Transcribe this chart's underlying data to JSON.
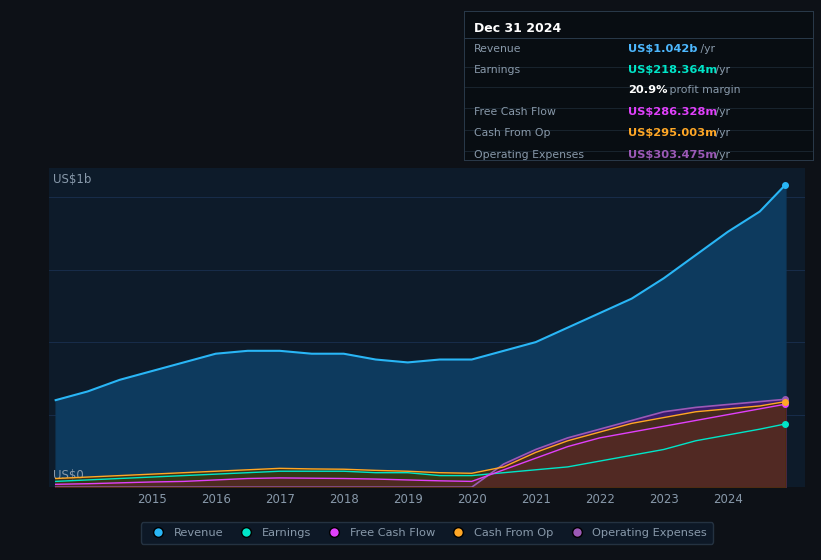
{
  "background_color": "#0d1117",
  "plot_bg_color": "#0d1b2a",
  "tooltip_bg": "#080d12",
  "tooltip_border": "#2a3a4a",
  "title_box": {
    "date": "Dec 31 2024",
    "rows": [
      {
        "label": "Revenue",
        "value": "US$1.042b",
        "suffix": " /yr",
        "value_color": "#4db8ff"
      },
      {
        "label": "Earnings",
        "value": "US$218.364m",
        "suffix": " /yr",
        "value_color": "#00e5c8"
      },
      {
        "label": "",
        "value": "20.9%",
        "suffix": " profit margin",
        "value_color": "#ffffff"
      },
      {
        "label": "Free Cash Flow",
        "value": "US$286.328m",
        "suffix": " /yr",
        "value_color": "#e040fb"
      },
      {
        "label": "Cash From Op",
        "value": "US$295.003m",
        "suffix": " /yr",
        "value_color": "#ffa726"
      },
      {
        "label": "Operating Expenses",
        "value": "US$303.475m",
        "suffix": " /yr",
        "value_color": "#9b59b6"
      }
    ]
  },
  "years": [
    2013.5,
    2014.0,
    2014.5,
    2015.0,
    2015.5,
    2016.0,
    2016.5,
    2017.0,
    2017.5,
    2018.0,
    2018.5,
    2019.0,
    2019.5,
    2020.0,
    2020.5,
    2021.0,
    2021.5,
    2022.0,
    2022.5,
    2023.0,
    2023.5,
    2024.0,
    2024.5,
    2024.9
  ],
  "revenue": [
    0.3,
    0.33,
    0.37,
    0.4,
    0.43,
    0.46,
    0.47,
    0.47,
    0.46,
    0.46,
    0.44,
    0.43,
    0.44,
    0.44,
    0.47,
    0.5,
    0.55,
    0.6,
    0.65,
    0.72,
    0.8,
    0.88,
    0.95,
    1.042
  ],
  "earnings": [
    0.02,
    0.025,
    0.03,
    0.035,
    0.04,
    0.045,
    0.05,
    0.055,
    0.055,
    0.055,
    0.05,
    0.05,
    0.04,
    0.04,
    0.05,
    0.06,
    0.07,
    0.09,
    0.11,
    0.13,
    0.16,
    0.18,
    0.2,
    0.218
  ],
  "free_cash_flow": [
    0.01,
    0.012,
    0.015,
    0.018,
    0.02,
    0.025,
    0.03,
    0.032,
    0.031,
    0.03,
    0.028,
    0.025,
    0.022,
    0.02,
    0.06,
    0.1,
    0.14,
    0.17,
    0.19,
    0.21,
    0.23,
    0.25,
    0.27,
    0.286
  ],
  "cash_from_op": [
    0.03,
    0.035,
    0.04,
    0.045,
    0.05,
    0.055,
    0.06,
    0.065,
    0.063,
    0.062,
    0.058,
    0.055,
    0.05,
    0.048,
    0.07,
    0.12,
    0.16,
    0.19,
    0.22,
    0.24,
    0.26,
    0.27,
    0.28,
    0.295
  ],
  "op_expenses": [
    0.0,
    0.0,
    0.0,
    0.0,
    0.0,
    0.0,
    0.0,
    0.0,
    0.0,
    0.0,
    0.0,
    0.0,
    0.0,
    0.0,
    0.08,
    0.13,
    0.17,
    0.2,
    0.23,
    0.26,
    0.275,
    0.285,
    0.295,
    0.303
  ],
  "revenue_line_color": "#29b6f6",
  "revenue_fill_color": "#0d3a5e",
  "earnings_line_color": "#00e5c8",
  "earnings_fill_color": "#004d40",
  "fcf_line_color": "#e040fb",
  "fcf_fill_color": "#6a1a7a",
  "cashop_line_color": "#ffa726",
  "cashop_fill_color": "#4a3000",
  "opex_line_color": "#9b59b6",
  "opex_fill_color": "#3d1a6e",
  "grid_color": "#1a3050",
  "text_color": "#8899aa",
  "ylabel_text": "US$1b",
  "y0_text": "US$0",
  "ylim": [
    0.0,
    1.1
  ],
  "xlim": [
    2013.4,
    2025.2
  ],
  "xtick_years": [
    2015,
    2016,
    2017,
    2018,
    2019,
    2020,
    2021,
    2022,
    2023,
    2024
  ],
  "legend_items": [
    {
      "label": "Revenue",
      "color": "#29b6f6"
    },
    {
      "label": "Earnings",
      "color": "#00e5c8"
    },
    {
      "label": "Free Cash Flow",
      "color": "#e040fb"
    },
    {
      "label": "Cash From Op",
      "color": "#ffa726"
    },
    {
      "label": "Operating Expenses",
      "color": "#9b59b6"
    }
  ]
}
